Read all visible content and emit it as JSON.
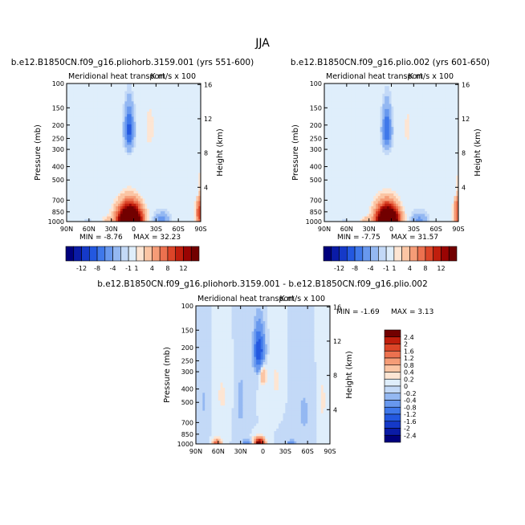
{
  "chart_data": {
    "type": "heatmap",
    "title": "JJA",
    "panels": [
      {
        "id": "left",
        "case_title": "b.e12.B1850CN.f09_g16.pliohorb.3159.001 (yrs 551-600)",
        "subtitle": "Meridional heat transport",
        "units_label": "K m/s x 100",
        "ylabel_left": "Pressure (mb)",
        "ylabel_right": "Height (km)",
        "x_ticks": [
          "90N",
          "60N",
          "30N",
          "0",
          "30S",
          "60S",
          "90S"
        ],
        "p_ticks": [
          "100",
          "150",
          "200",
          "250",
          "300",
          "400",
          "500",
          "700",
          "850",
          "1000"
        ],
        "h_ticks": [
          "16",
          "12",
          "8",
          "4"
        ],
        "min_text": "MIN =   -8.76",
        "max_text": "MAX =   32.23",
        "min": -8.76,
        "max": 32.23,
        "blobs": [
          {
            "lat": 5,
            "p": 985,
            "sl": 11,
            "sp": 170,
            "amp": 30
          },
          {
            "lat": 6,
            "p": 215,
            "sl": 4.5,
            "sp": 55,
            "amp": -9
          },
          {
            "lat": -22,
            "p": 220,
            "sl": 8,
            "sp": 100,
            "amp": 1.4
          },
          {
            "lat": -38,
            "p": 1000,
            "sl": 9,
            "sp": 95,
            "amp": -5.2
          },
          {
            "lat": -52,
            "p": 1000,
            "sl": 6,
            "sp": 60,
            "amp": 1.5
          },
          {
            "lat": -88,
            "p": 850,
            "sl": 3,
            "sp": 200,
            "amp": 9
          },
          {
            "lat": -86,
            "p": 600,
            "sl": 2.5,
            "sp": 60,
            "amp": -3.5
          },
          {
            "lat": 35,
            "p": 990,
            "sl": 5,
            "sp": 50,
            "amp": 3
          },
          {
            "lat": 62,
            "p": 1000,
            "sl": 6,
            "sp": 50,
            "amp": -1.4
          },
          {
            "lat": 60,
            "p": 220,
            "sl": 15,
            "sp": 130,
            "amp": 0.6
          },
          {
            "lat": -30,
            "p": 600,
            "sl": 30,
            "sp": 250,
            "amp": -0.6
          }
        ]
      },
      {
        "id": "right",
        "case_title": "b.e12.B1850CN.f09_g16.plio.002 (yrs 601-650)",
        "subtitle": "Meridional heat transport",
        "units_label": "K m/s x 100",
        "ylabel_left": "Pressure (mb)",
        "ylabel_right": "Height (km)",
        "x_ticks": [
          "90N",
          "60N",
          "30N",
          "0",
          "30S",
          "60S",
          "90S"
        ],
        "p_ticks": [
          "100",
          "150",
          "200",
          "250",
          "300",
          "400",
          "500",
          "700",
          "850",
          "1000"
        ],
        "h_ticks": [
          "16",
          "12",
          "8",
          "4"
        ],
        "min_text": "MIN =   -7.75",
        "max_text": "MAX =   31.57",
        "min": -7.75,
        "max": 31.57,
        "blobs": [
          {
            "lat": 5,
            "p": 985,
            "sl": 10.5,
            "sp": 165,
            "amp": 29
          },
          {
            "lat": 6,
            "p": 215,
            "sl": 4.5,
            "sp": 55,
            "amp": -8
          },
          {
            "lat": -22,
            "p": 220,
            "sl": 8,
            "sp": 100,
            "amp": 1.3
          },
          {
            "lat": -38,
            "p": 1000,
            "sl": 9,
            "sp": 95,
            "amp": -4.8
          },
          {
            "lat": -52,
            "p": 1000,
            "sl": 6,
            "sp": 60,
            "amp": 1.4
          },
          {
            "lat": -88,
            "p": 850,
            "sl": 3,
            "sp": 200,
            "amp": 8
          },
          {
            "lat": -86,
            "p": 600,
            "sl": 2.5,
            "sp": 60,
            "amp": -3
          },
          {
            "lat": 35,
            "p": 990,
            "sl": 5,
            "sp": 50,
            "amp": 2.6
          },
          {
            "lat": 62,
            "p": 1000,
            "sl": 6,
            "sp": 50,
            "amp": -1.2
          },
          {
            "lat": 60,
            "p": 220,
            "sl": 15,
            "sp": 130,
            "amp": 0.6
          },
          {
            "lat": -30,
            "p": 600,
            "sl": 30,
            "sp": 250,
            "amp": -0.6
          }
        ]
      },
      {
        "id": "diff",
        "case_title": "b.e12.B1850CN.f09_g16.pliohorb.3159.001 - b.e12.B1850CN.f09_g16.plio.002",
        "subtitle": "Meridional heat transport",
        "units_label": "K m/s x 100",
        "ylabel_left": "Pressure (mb)",
        "ylabel_right": "Height (km)",
        "x_ticks": [
          "90N",
          "60N",
          "30N",
          "0",
          "30S",
          "60S",
          "90S"
        ],
        "p_ticks": [
          "100",
          "150",
          "200",
          "250",
          "300",
          "400",
          "500",
          "700",
          "850",
          "1000"
        ],
        "h_ticks": [
          "16",
          "12",
          "8",
          "4"
        ],
        "min_text": "MIN =   -1.69",
        "max_text": "MAX =    3.13",
        "min": -1.69,
        "max": 3.13,
        "blobs": [
          {
            "lat": 5,
            "p": 215,
            "sl": 5,
            "sp": 55,
            "amp": -1.6
          },
          {
            "lat": 0,
            "p": 310,
            "sl": 3,
            "sp": 40,
            "amp": 0.9
          },
          {
            "lat": 5,
            "p": 985,
            "sl": 5,
            "sp": 60,
            "amp": 2.9
          },
          {
            "lat": 62,
            "p": 985,
            "sl": 4,
            "sp": 50,
            "amp": 1.5
          },
          {
            "lat": 20,
            "p": 990,
            "sl": 5,
            "sp": 45,
            "amp": -0.7
          },
          {
            "lat": -38,
            "p": 995,
            "sl": 4,
            "sp": 40,
            "amp": -0.6
          },
          {
            "lat": 30,
            "p": 500,
            "sl": 6,
            "sp": 250,
            "amp": -0.25
          },
          {
            "lat": 55,
            "p": 450,
            "sl": 9,
            "sp": 200,
            "amp": 0.22
          },
          {
            "lat": 78,
            "p": 500,
            "sl": 5,
            "sp": 300,
            "amp": -0.22
          },
          {
            "lat": -18,
            "p": 350,
            "sl": 8,
            "sp": 140,
            "amp": 0.22
          },
          {
            "lat": -55,
            "p": 600,
            "sl": 12,
            "sp": 300,
            "amp": -0.22
          },
          {
            "lat": -80,
            "p": 500,
            "sl": 6,
            "sp": 300,
            "amp": 0.24
          }
        ]
      }
    ],
    "colorbar_main": {
      "orientation": "horizontal",
      "labels": [
        "-12",
        "-8",
        "-4",
        "-1",
        "1",
        "4",
        "8",
        "12"
      ],
      "levels": [
        -14,
        -12,
        -10,
        -8,
        -6,
        -4,
        -2,
        -1,
        1,
        2,
        4,
        6,
        8,
        10,
        12,
        14
      ],
      "colors": [
        "#00007d",
        "#0a1ba6",
        "#1539c8",
        "#2358e0",
        "#3f78ea",
        "#6898ee",
        "#94b8f2",
        "#c3d9f7",
        "#dfeefb",
        "#fde5d3",
        "#fbc5a4",
        "#f59c77",
        "#ec714f",
        "#dc4528",
        "#c01e0d",
        "#9a0403",
        "#720000"
      ]
    },
    "colorbar_diff": {
      "orientation": "vertical",
      "labels": [
        "2.4",
        "2",
        "1.6",
        "1.2",
        "0.8",
        "0.4",
        "0.2",
        "0",
        "-0.2",
        "-0.4",
        "-0.8",
        "-1.2",
        "-1.6",
        "-2",
        "-2.4"
      ],
      "levels": [
        -2.4,
        -2,
        -1.6,
        -1.2,
        -0.8,
        -0.4,
        -0.2,
        0,
        0.2,
        0.4,
        0.8,
        1.2,
        1.6,
        2,
        2.4
      ],
      "colors": [
        "#00007d",
        "#0a1ba6",
        "#1539c8",
        "#2358e0",
        "#3f78ea",
        "#6898ee",
        "#94b8f2",
        "#c3d9f7",
        "#dfeefb",
        "#fde5d3",
        "#fbc5a4",
        "#f59c77",
        "#ec714f",
        "#dc4528",
        "#c01e0d",
        "#720000"
      ]
    }
  }
}
